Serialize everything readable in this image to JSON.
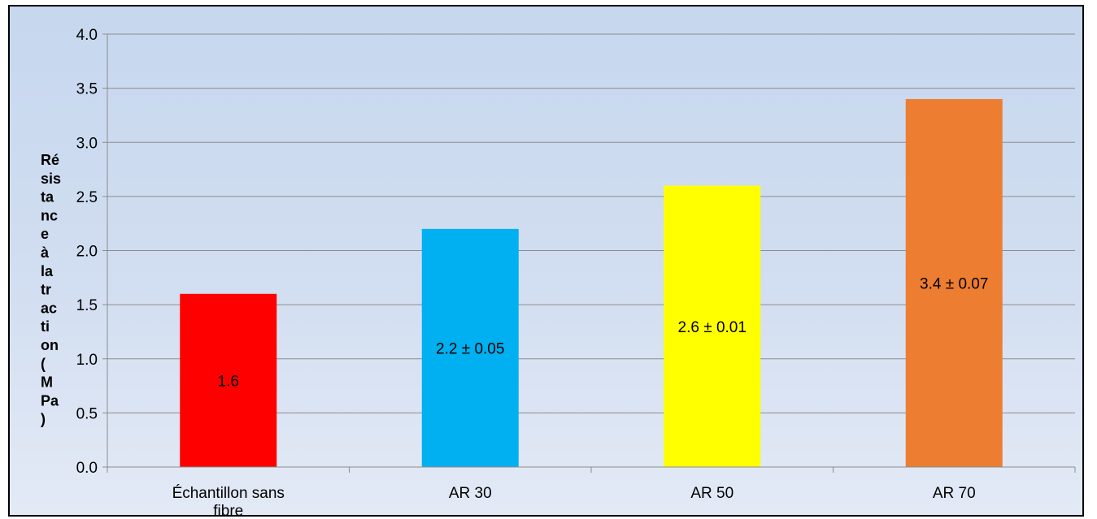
{
  "chart_data": {
    "type": "bar",
    "title": "",
    "xlabel": "",
    "ylabel": "Résistance à la traction (MPa)",
    "ylabel_lines": [
      "Ré",
      "sis",
      "ta",
      "nc",
      "e",
      "à",
      "la",
      "tr",
      "ac",
      "ti",
      "on",
      "(",
      "M",
      "Pa",
      ")"
    ],
    "categories": [
      "Échantillon sans fibre",
      "AR 30",
      "AR 50",
      "AR 70"
    ],
    "values": [
      1.6,
      2.2,
      2.6,
      3.4
    ],
    "data_labels": [
      "1.6",
      "2.2 ± 0.05",
      "2.6 ± 0.01",
      "3.4 ± 0.07"
    ],
    "colors": [
      "#ff0000",
      "#00b0f0",
      "#ffff00",
      "#ed7d31"
    ],
    "ylim": [
      0,
      4.0
    ],
    "yticks": [
      "0.0",
      "0.5",
      "1.0",
      "1.5",
      "2.0",
      "2.5",
      "3.0",
      "3.5",
      "4.0"
    ],
    "grid": true,
    "legend": "none"
  }
}
